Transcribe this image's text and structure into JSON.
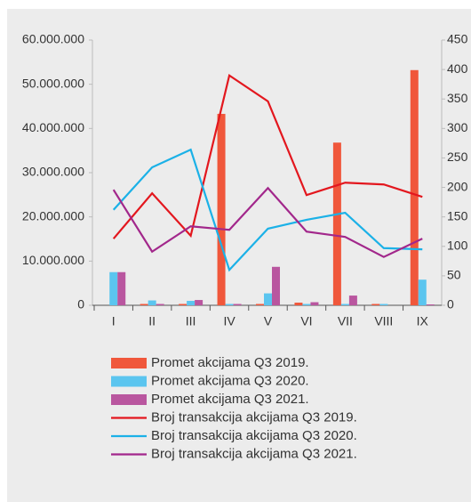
{
  "chart_data": {
    "type": "bar",
    "categories": [
      "I",
      "II",
      "III",
      "IV",
      "V",
      "VI",
      "VII",
      "VIII",
      "IX"
    ],
    "ylim": [
      0,
      60000000
    ],
    "yticks": [
      0,
      {
        "value": 10000000,
        "label": "10.000.000"
      },
      {
        "value": 20000000,
        "label": "20.000.000"
      },
      {
        "value": 30000000,
        "label": "30.000.000"
      },
      {
        "value": 40000000,
        "label": "40.000.000"
      },
      {
        "value": 50000000,
        "label": "50.000.000"
      },
      {
        "value": 60000000,
        "label": "60.000.000"
      }
    ],
    "y2lim": [
      0,
      450
    ],
    "y2ticks": [
      0,
      50,
      100,
      150,
      200,
      250,
      300,
      350,
      400,
      450
    ],
    "series": [
      {
        "name": "Promet akcijama Q3 2019.",
        "type": "bar",
        "color": "#f0573b",
        "values": [
          0,
          300000,
          300000,
          43300000,
          300000,
          600000,
          36800000,
          300000,
          53200000
        ]
      },
      {
        "name": "Promet akcijama Q3 2020.",
        "type": "bar",
        "color": "#5bc5ef",
        "values": [
          7500000,
          1100000,
          1000000,
          300000,
          2700000,
          300000,
          300000,
          300000,
          5800000
        ]
      },
      {
        "name": "Promet akcijama Q3 2021.",
        "type": "bar",
        "color": "#b9569f",
        "values": [
          7500000,
          300000,
          1200000,
          300000,
          8700000,
          700000,
          2200000,
          0,
          200000
        ]
      },
      {
        "name": "Broj transakcija akcijama Q3 2019.",
        "type": "line",
        "axis": "y2",
        "color": "#e3171e",
        "values": [
          113,
          190,
          118,
          390,
          346,
          187,
          208,
          205,
          184
        ]
      },
      {
        "name": "Broj transakcija akcijama Q3 2020.",
        "type": "line",
        "axis": "y2",
        "color": "#1bb1e7",
        "values": [
          162,
          234,
          264,
          60,
          130,
          145,
          157,
          97,
          95
        ]
      },
      {
        "name": "Broj transakcija akcijama Q3 2021.",
        "type": "line",
        "axis": "y2",
        "color": "#a2278b",
        "values": [
          196,
          91,
          134,
          128,
          199,
          125,
          116,
          82,
          113
        ]
      }
    ]
  }
}
